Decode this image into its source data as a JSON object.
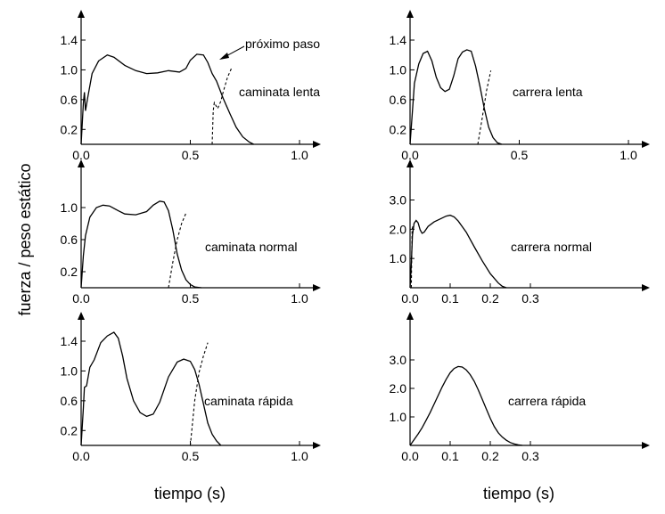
{
  "figure": {
    "ylabel": "fuerza / peso estático",
    "xlabel_left": "tiempo (s)",
    "xlabel_right": "tiempo (s)",
    "annotation": "próximo paso"
  },
  "chart_data": [
    {
      "type": "line",
      "title": "caminata lenta",
      "xlim": [
        0,
        1.0
      ],
      "ylim": [
        0,
        1.5
      ],
      "xticks": [
        0,
        0.5,
        1.0
      ],
      "xtick_labels": [
        "0.0",
        "0.5",
        "1.0"
      ],
      "yticks": [
        0.2,
        0.6,
        1.0,
        1.4
      ],
      "ytick_labels": [
        "0.2",
        "0.6",
        "1.0",
        "1.4"
      ],
      "series": [
        {
          "values": [
            [
              0.0,
              0.0
            ],
            [
              0.01,
              0.55
            ],
            [
              0.015,
              0.7
            ],
            [
              0.02,
              0.45
            ],
            [
              0.03,
              0.62
            ],
            [
              0.05,
              0.95
            ],
            [
              0.08,
              1.12
            ],
            [
              0.12,
              1.2
            ],
            [
              0.15,
              1.17
            ],
            [
              0.2,
              1.06
            ],
            [
              0.25,
              0.99
            ],
            [
              0.3,
              0.95
            ],
            [
              0.35,
              0.96
            ],
            [
              0.4,
              0.99
            ],
            [
              0.45,
              0.97
            ],
            [
              0.48,
              1.02
            ],
            [
              0.5,
              1.13
            ],
            [
              0.53,
              1.21
            ],
            [
              0.56,
              1.2
            ],
            [
              0.58,
              1.1
            ],
            [
              0.6,
              0.95
            ],
            [
              0.62,
              0.85
            ],
            [
              0.65,
              0.62
            ],
            [
              0.68,
              0.42
            ],
            [
              0.71,
              0.23
            ],
            [
              0.74,
              0.1
            ],
            [
              0.77,
              0.03
            ],
            [
              0.79,
              0.0
            ]
          ]
        },
        {
          "style": "next-step",
          "values": [
            [
              0.6,
              0.0
            ],
            [
              0.605,
              0.45
            ],
            [
              0.61,
              0.56
            ],
            [
              0.625,
              0.48
            ],
            [
              0.64,
              0.58
            ],
            [
              0.65,
              0.7
            ],
            [
              0.67,
              0.9
            ],
            [
              0.69,
              1.03
            ]
          ]
        }
      ]
    },
    {
      "type": "line",
      "title": "carrera lenta",
      "xlim": [
        0,
        1.0
      ],
      "ylim": [
        0,
        1.5
      ],
      "xticks": [
        0,
        0.5,
        1.0
      ],
      "xtick_labels": [
        "0.0",
        "0.5",
        "1.0"
      ],
      "yticks": [
        0.2,
        0.6,
        1.0,
        1.4
      ],
      "ytick_labels": [
        "0.2",
        "0.6",
        "1.0",
        "1.4"
      ],
      "series": [
        {
          "values": [
            [
              0.0,
              0.0
            ],
            [
              0.01,
              0.4
            ],
            [
              0.02,
              0.82
            ],
            [
              0.04,
              1.08
            ],
            [
              0.06,
              1.22
            ],
            [
              0.08,
              1.25
            ],
            [
              0.1,
              1.12
            ],
            [
              0.12,
              0.9
            ],
            [
              0.14,
              0.76
            ],
            [
              0.16,
              0.71
            ],
            [
              0.18,
              0.74
            ],
            [
              0.2,
              0.92
            ],
            [
              0.22,
              1.15
            ],
            [
              0.24,
              1.24
            ],
            [
              0.26,
              1.27
            ],
            [
              0.28,
              1.25
            ],
            [
              0.3,
              1.05
            ],
            [
              0.32,
              0.78
            ],
            [
              0.34,
              0.48
            ],
            [
              0.36,
              0.23
            ],
            [
              0.38,
              0.09
            ],
            [
              0.4,
              0.02
            ],
            [
              0.42,
              0.0
            ]
          ]
        },
        {
          "style": "next-step",
          "values": [
            [
              0.31,
              0.0
            ],
            [
              0.33,
              0.35
            ],
            [
              0.35,
              0.72
            ],
            [
              0.37,
              0.99
            ]
          ]
        }
      ]
    },
    {
      "type": "line",
      "title": "caminata normal",
      "xlim": [
        0,
        1.0
      ],
      "ylim": [
        0,
        1.2
      ],
      "xticks": [
        0,
        0.5,
        1.0
      ],
      "xtick_labels": [
        "0.0",
        "0.5",
        "1.0"
      ],
      "yticks": [
        0.2,
        0.6,
        1.0
      ],
      "ytick_labels": [
        "0.2",
        "0.6",
        "1.0"
      ],
      "series": [
        {
          "values": [
            [
              0.0,
              0.0
            ],
            [
              0.01,
              0.4
            ],
            [
              0.02,
              0.65
            ],
            [
              0.04,
              0.88
            ],
            [
              0.07,
              1.0
            ],
            [
              0.1,
              1.03
            ],
            [
              0.13,
              1.02
            ],
            [
              0.17,
              0.96
            ],
            [
              0.2,
              0.92
            ],
            [
              0.25,
              0.91
            ],
            [
              0.3,
              0.95
            ],
            [
              0.33,
              1.03
            ],
            [
              0.36,
              1.08
            ],
            [
              0.38,
              1.07
            ],
            [
              0.4,
              0.96
            ],
            [
              0.42,
              0.72
            ],
            [
              0.44,
              0.42
            ],
            [
              0.46,
              0.22
            ],
            [
              0.48,
              0.1
            ],
            [
              0.5,
              0.04
            ],
            [
              0.52,
              0.01
            ],
            [
              0.55,
              0.0
            ]
          ]
        },
        {
          "style": "next-step",
          "values": [
            [
              0.4,
              0.0
            ],
            [
              0.42,
              0.32
            ],
            [
              0.44,
              0.6
            ],
            [
              0.46,
              0.8
            ],
            [
              0.48,
              0.93
            ]
          ]
        }
      ]
    },
    {
      "type": "line",
      "title": "carrera normal",
      "xlim": [
        0,
        0.5
      ],
      "ylim": [
        0,
        3.3
      ],
      "xticks": [
        0,
        0.1,
        0.2,
        0.3
      ],
      "xtick_labels": [
        "0.0",
        "0.1",
        "0.2",
        "0.3"
      ],
      "yticks": [
        1.0,
        2.0,
        3.0
      ],
      "ytick_labels": [
        "1.0",
        "2.0",
        "3.0"
      ],
      "series": [
        {
          "values": [
            [
              0.0,
              0.0
            ],
            [
              0.003,
              0.8
            ],
            [
              0.006,
              1.8
            ],
            [
              0.01,
              2.2
            ],
            [
              0.015,
              2.3
            ],
            [
              0.02,
              2.22
            ],
            [
              0.025,
              1.98
            ],
            [
              0.03,
              1.86
            ],
            [
              0.035,
              1.9
            ],
            [
              0.045,
              2.1
            ],
            [
              0.06,
              2.25
            ],
            [
              0.075,
              2.35
            ],
            [
              0.09,
              2.45
            ],
            [
              0.1,
              2.48
            ],
            [
              0.11,
              2.42
            ],
            [
              0.12,
              2.28
            ],
            [
              0.14,
              1.9
            ],
            [
              0.16,
              1.4
            ],
            [
              0.18,
              0.92
            ],
            [
              0.2,
              0.48
            ],
            [
              0.22,
              0.16
            ],
            [
              0.23,
              0.05
            ],
            [
              0.24,
              0.0
            ]
          ]
        },
        {
          "style": "next-step",
          "values": [
            [
              0.003,
              0.0
            ],
            [
              0.005,
              2.0
            ],
            [
              0.008,
              2.15
            ]
          ]
        }
      ]
    },
    {
      "type": "line",
      "title": "caminata rápida",
      "xlim": [
        0,
        1.0
      ],
      "ylim": [
        0,
        1.6
      ],
      "xticks": [
        0,
        0.5,
        1.0
      ],
      "xtick_labels": [
        "0.0",
        "0.5",
        "1.0"
      ],
      "yticks": [
        0.2,
        0.6,
        1.0,
        1.4
      ],
      "ytick_labels": [
        "0.2",
        "0.6",
        "1.0",
        "1.4"
      ],
      "series": [
        {
          "values": [
            [
              0.0,
              0.0
            ],
            [
              0.01,
              0.5
            ],
            [
              0.015,
              0.78
            ],
            [
              0.025,
              0.8
            ],
            [
              0.04,
              1.05
            ],
            [
              0.06,
              1.15
            ],
            [
              0.09,
              1.38
            ],
            [
              0.12,
              1.47
            ],
            [
              0.15,
              1.52
            ],
            [
              0.17,
              1.44
            ],
            [
              0.19,
              1.2
            ],
            [
              0.21,
              0.9
            ],
            [
              0.24,
              0.6
            ],
            [
              0.27,
              0.44
            ],
            [
              0.3,
              0.39
            ],
            [
              0.33,
              0.42
            ],
            [
              0.36,
              0.58
            ],
            [
              0.4,
              0.92
            ],
            [
              0.44,
              1.12
            ],
            [
              0.47,
              1.16
            ],
            [
              0.5,
              1.13
            ],
            [
              0.52,
              1.02
            ],
            [
              0.54,
              0.82
            ],
            [
              0.56,
              0.56
            ],
            [
              0.58,
              0.3
            ],
            [
              0.6,
              0.15
            ],
            [
              0.62,
              0.06
            ],
            [
              0.64,
              0.0
            ]
          ]
        },
        {
          "style": "next-step",
          "values": [
            [
              0.5,
              0.0
            ],
            [
              0.52,
              0.6
            ],
            [
              0.54,
              0.98
            ],
            [
              0.56,
              1.2
            ],
            [
              0.58,
              1.38
            ]
          ]
        }
      ]
    },
    {
      "type": "line",
      "title": "carrera rápida",
      "xlim": [
        0,
        0.5
      ],
      "ylim": [
        0,
        3.3
      ],
      "xticks": [
        0,
        0.1,
        0.2,
        0.3
      ],
      "xtick_labels": [
        "0.0",
        "0.1",
        "0.2",
        "0.3"
      ],
      "yticks": [
        1.0,
        2.0,
        3.0
      ],
      "ytick_labels": [
        "1.0",
        "2.0",
        "3.0"
      ],
      "series": [
        {
          "values": [
            [
              0.0,
              0.0
            ],
            [
              0.01,
              0.2
            ],
            [
              0.02,
              0.4
            ],
            [
              0.03,
              0.62
            ],
            [
              0.04,
              0.88
            ],
            [
              0.05,
              1.15
            ],
            [
              0.06,
              1.45
            ],
            [
              0.07,
              1.75
            ],
            [
              0.08,
              2.05
            ],
            [
              0.09,
              2.32
            ],
            [
              0.1,
              2.55
            ],
            [
              0.11,
              2.7
            ],
            [
              0.12,
              2.77
            ],
            [
              0.13,
              2.75
            ],
            [
              0.14,
              2.65
            ],
            [
              0.15,
              2.48
            ],
            [
              0.16,
              2.25
            ],
            [
              0.17,
              1.95
            ],
            [
              0.18,
              1.62
            ],
            [
              0.19,
              1.28
            ],
            [
              0.2,
              0.95
            ],
            [
              0.21,
              0.66
            ],
            [
              0.22,
              0.44
            ],
            [
              0.23,
              0.29
            ],
            [
              0.24,
              0.18
            ],
            [
              0.25,
              0.1
            ],
            [
              0.26,
              0.05
            ],
            [
              0.27,
              0.02
            ],
            [
              0.28,
              0.0
            ]
          ]
        }
      ]
    }
  ]
}
